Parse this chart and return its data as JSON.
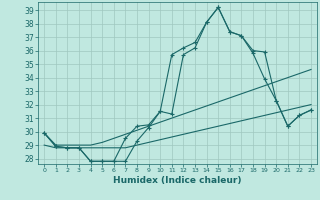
{
  "xlabel": "Humidex (Indice chaleur)",
  "background_color": "#c0e8e0",
  "grid_color": "#a0c8c0",
  "line_color": "#1a6868",
  "x_ticks": [
    0,
    1,
    2,
    3,
    4,
    5,
    6,
    7,
    8,
    9,
    10,
    11,
    12,
    13,
    14,
    15,
    16,
    17,
    18,
    19,
    20,
    21,
    22,
    23
  ],
  "y_ticks": [
    28,
    29,
    30,
    31,
    32,
    33,
    34,
    35,
    36,
    37,
    38,
    39
  ],
  "ylim": [
    27.6,
    39.6
  ],
  "xlim": [
    -0.5,
    23.5
  ],
  "series": [
    {
      "y": [
        29.9,
        28.9,
        28.8,
        28.8,
        27.8,
        27.8,
        27.8,
        27.8,
        29.3,
        30.3,
        31.5,
        31.3,
        35.7,
        36.2,
        38.1,
        39.2,
        37.4,
        37.1,
        35.8,
        33.9,
        32.3,
        30.4,
        31.2,
        31.6
      ],
      "marker": "+"
    },
    {
      "y": [
        29.9,
        28.9,
        28.8,
        28.8,
        27.8,
        27.8,
        27.8,
        29.5,
        30.4,
        30.5,
        31.5,
        35.7,
        36.2,
        36.6,
        38.1,
        39.2,
        37.4,
        37.1,
        36.0,
        35.9,
        32.3,
        30.4,
        31.2,
        31.6
      ],
      "marker": "+"
    },
    {
      "y": [
        29.9,
        29.0,
        29.0,
        29.0,
        29.0,
        29.2,
        29.5,
        29.8,
        30.1,
        30.4,
        30.7,
        31.0,
        31.3,
        31.6,
        31.9,
        32.2,
        32.5,
        32.8,
        33.1,
        33.4,
        33.7,
        34.0,
        34.3,
        34.6
      ],
      "marker": null
    },
    {
      "y": [
        29.0,
        28.8,
        28.8,
        28.8,
        28.8,
        28.8,
        28.8,
        28.8,
        29.0,
        29.2,
        29.4,
        29.6,
        29.8,
        30.0,
        30.2,
        30.4,
        30.6,
        30.8,
        31.0,
        31.2,
        31.4,
        31.6,
        31.8,
        32.0
      ],
      "marker": null
    }
  ]
}
